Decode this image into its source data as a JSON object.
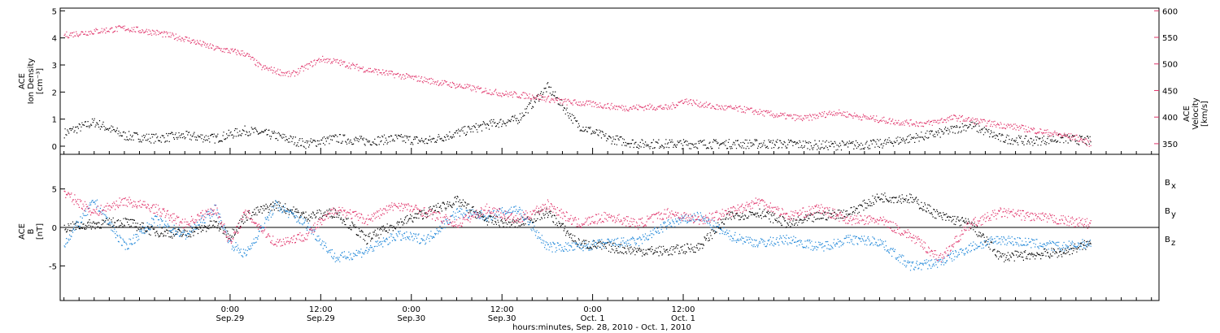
{
  "chart_data": [
    {
      "type": "scatter",
      "panel": "top",
      "left_axis": {
        "label_lines": [
          "ACE",
          "Ion Density",
          "[cm⁻³]"
        ],
        "ylim": [
          -0.3,
          5.1
        ],
        "ticks": [
          0,
          1,
          2,
          3,
          4,
          5
        ]
      },
      "right_axis": {
        "label_lines": [
          "ACE",
          "Velocity",
          "[km/s]"
        ],
        "ylim": [
          330,
          605
        ],
        "ticks": [
          350,
          400,
          450,
          500,
          550,
          600
        ],
        "color": "#e0336a"
      },
      "series": [
        {
          "name": "Ion Density",
          "axis": "left",
          "color": "#000000",
          "x": [
            -22,
            -18,
            -14,
            -10,
            -6,
            -2,
            2,
            6,
            10,
            14,
            18,
            22,
            26,
            30,
            34,
            38,
            42,
            46,
            50,
            54,
            58,
            62,
            66,
            70,
            74,
            78,
            82,
            86,
            90,
            94,
            98,
            102,
            106,
            110,
            114
          ],
          "values": [
            0.5,
            0.9,
            0.4,
            0.3,
            0.4,
            0.3,
            0.6,
            0.4,
            0.1,
            0.3,
            0.2,
            0.3,
            0.2,
            0.5,
            0.8,
            1.0,
            2.2,
            0.8,
            0.3,
            0.1,
            0.1,
            0.1,
            0.1,
            0.1,
            0.1,
            0.05,
            0.05,
            0.1,
            0.3,
            0.5,
            0.8,
            0.3,
            0.2,
            0.3,
            0.2
          ]
        },
        {
          "name": "Velocity",
          "axis": "right",
          "color": "#e0336a",
          "x": [
            -22,
            -18,
            -14,
            -10,
            -6,
            -2,
            2,
            4,
            8,
            12,
            14,
            18,
            22,
            24,
            28,
            32,
            36,
            40,
            44,
            48,
            52,
            56,
            58,
            60,
            64,
            68,
            72,
            76,
            80,
            84,
            88,
            92,
            96,
            100,
            104,
            108,
            112,
            114
          ],
          "values": [
            555,
            562,
            568,
            560,
            548,
            530,
            520,
            495,
            480,
            510,
            505,
            490,
            480,
            475,
            465,
            455,
            445,
            440,
            430,
            425,
            418,
            420,
            418,
            432,
            420,
            415,
            405,
            398,
            410,
            400,
            392,
            388,
            400,
            390,
            382,
            372,
            362,
            350
          ]
        }
      ]
    },
    {
      "type": "scatter",
      "panel": "bottom",
      "left_axis": {
        "label_lines": [
          "ACE",
          "B",
          "[nT]"
        ],
        "ylim": [
          -9.5,
          9.5
        ],
        "ticks": [
          -5,
          0,
          5
        ]
      },
      "series": [
        {
          "name": "Bx",
          "color": "#000000",
          "x": [
            -22,
            -18,
            -14,
            -10,
            -6,
            -2,
            0,
            2,
            6,
            10,
            14,
            18,
            22,
            26,
            30,
            34,
            38,
            42,
            46,
            50,
            54,
            58,
            62,
            66,
            70,
            74,
            78,
            82,
            86,
            90,
            94,
            98,
            102,
            106,
            110,
            114
          ],
          "values": [
            0,
            0.5,
            0.8,
            -0.5,
            -0.8,
            0.5,
            -1.0,
            1.5,
            3.0,
            1.5,
            2.0,
            -1.5,
            0.5,
            2.0,
            3.5,
            1.0,
            0.5,
            2.0,
            -2.0,
            -2.5,
            -3.0,
            -3.0,
            -2.5,
            1.5,
            2.0,
            0.5,
            1.5,
            2.0,
            4.0,
            3.8,
            1.5,
            0.5,
            -3.8,
            -3.5,
            -3.2,
            -2.0
          ]
        },
        {
          "name": "By",
          "color": "#1a84d8",
          "x": [
            -22,
            -18,
            -14,
            -10,
            -6,
            -2,
            0,
            2,
            6,
            10,
            14,
            18,
            22,
            26,
            30,
            34,
            38,
            42,
            46,
            50,
            54,
            58,
            62,
            66,
            70,
            74,
            78,
            82,
            86,
            90,
            94,
            98,
            102,
            106,
            110,
            114
          ],
          "values": [
            -2,
            3.5,
            -2.5,
            1.0,
            -1.0,
            2.5,
            -2.0,
            -3.5,
            3.0,
            0.5,
            -4.0,
            -3.0,
            -1.0,
            -1.5,
            2.0,
            1.5,
            2.5,
            -2.5,
            -2.5,
            -2.0,
            -1.8,
            0.5,
            1.5,
            -1.0,
            -2.0,
            -1.5,
            -2.5,
            -1.5,
            -1.8,
            -5.0,
            -4.5,
            -2.5,
            -1.5,
            -2.0,
            -2.5,
            -2.0
          ]
        },
        {
          "name": "Bz",
          "color": "#e0336a",
          "x": [
            -22,
            -18,
            -14,
            -10,
            -6,
            -2,
            0,
            2,
            6,
            10,
            14,
            18,
            22,
            26,
            30,
            34,
            38,
            42,
            46,
            50,
            54,
            58,
            62,
            66,
            70,
            74,
            78,
            82,
            86,
            90,
            94,
            98,
            102,
            106,
            110,
            114
          ],
          "values": [
            4.5,
            2.0,
            3.5,
            2.5,
            0.5,
            2.5,
            -2.0,
            2.0,
            -2.0,
            -1.0,
            2.5,
            1.0,
            3.0,
            2.0,
            0.5,
            2.5,
            1.0,
            3.0,
            0.5,
            1.5,
            0.5,
            2.0,
            1.0,
            2.0,
            3.5,
            1.5,
            2.5,
            1.0,
            1.0,
            -1.0,
            -4.0,
            0.5,
            2.0,
            1.5,
            1.0,
            0.5
          ]
        }
      ],
      "legend": [
        {
          "label": "B",
          "sub": "x",
          "color": "#000000"
        },
        {
          "label": "B",
          "sub": "y",
          "color": "#1a84d8"
        },
        {
          "label": "B",
          "sub": "z",
          "color": "#e0336a"
        }
      ],
      "zero_line": true
    }
  ],
  "x_axis": {
    "range_hours": [
      -22.5,
      123
    ],
    "ticks": [
      {
        "hour": 0,
        "line1": "0:00",
        "line2": "Sep.29"
      },
      {
        "hour": 12,
        "line1": "12:00",
        "line2": "Sep.29"
      },
      {
        "hour": 24,
        "line1": "0:00",
        "line2": "Sep.30"
      },
      {
        "hour": 36,
        "line1": "12:00",
        "line2": "Sep.30"
      },
      {
        "hour": 48,
        "line1": "0:00",
        "line2": "Oct. 1"
      },
      {
        "hour": 60,
        "line1": "12:00",
        "line2": "Oct. 1"
      }
    ],
    "label": "hours:minutes, Sep. 28, 2010 - Oct.  1, 2010"
  }
}
